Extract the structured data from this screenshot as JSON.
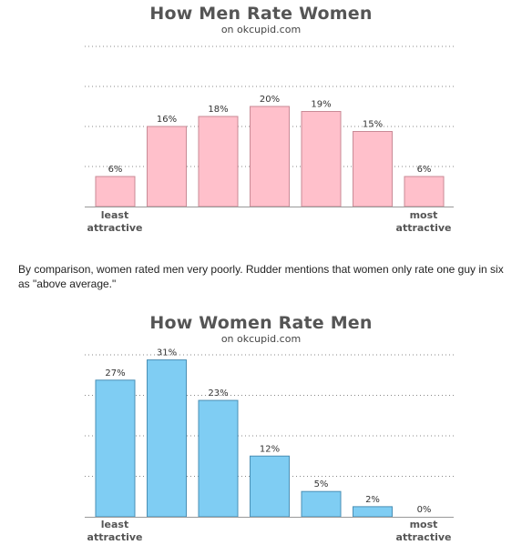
{
  "paragraph": "By comparison, women rated men very poorly. Rudder mentions that women only rate one guy in six as \"above average.\"",
  "chart_data": [
    {
      "type": "bar",
      "title": "How Men Rate Women",
      "subtitle": "on okcupid.com",
      "categories": [
        "1",
        "2",
        "3",
        "4",
        "5",
        "6",
        "7"
      ],
      "values": [
        6,
        16,
        18,
        20,
        19,
        15,
        6
      ],
      "data_labels": [
        "6%",
        "16%",
        "18%",
        "20%",
        "19%",
        "15%",
        "6%"
      ],
      "left_label": "least attractive",
      "right_label": "most attractive",
      "ylim": [
        0,
        32
      ],
      "gridlines": [
        8,
        16,
        24,
        32
      ],
      "grid": true,
      "bar_color": "#ffc0cb",
      "bar_stroke": "#c98a96"
    },
    {
      "type": "bar",
      "title": "How Women Rate Men",
      "subtitle": "on okcupid.com",
      "categories": [
        "1",
        "2",
        "3",
        "4",
        "5",
        "6",
        "7"
      ],
      "values": [
        27,
        31,
        23,
        12,
        5,
        2,
        0
      ],
      "data_labels": [
        "27%",
        "31%",
        "23%",
        "12%",
        "5%",
        "2%",
        "0%"
      ],
      "left_label": "least attractive",
      "right_label": "most attractive",
      "ylim": [
        0,
        32
      ],
      "gridlines": [
        8,
        16,
        24,
        32
      ],
      "grid": true,
      "bar_color": "#7fcdf3",
      "bar_stroke": "#4a8fb5"
    }
  ]
}
